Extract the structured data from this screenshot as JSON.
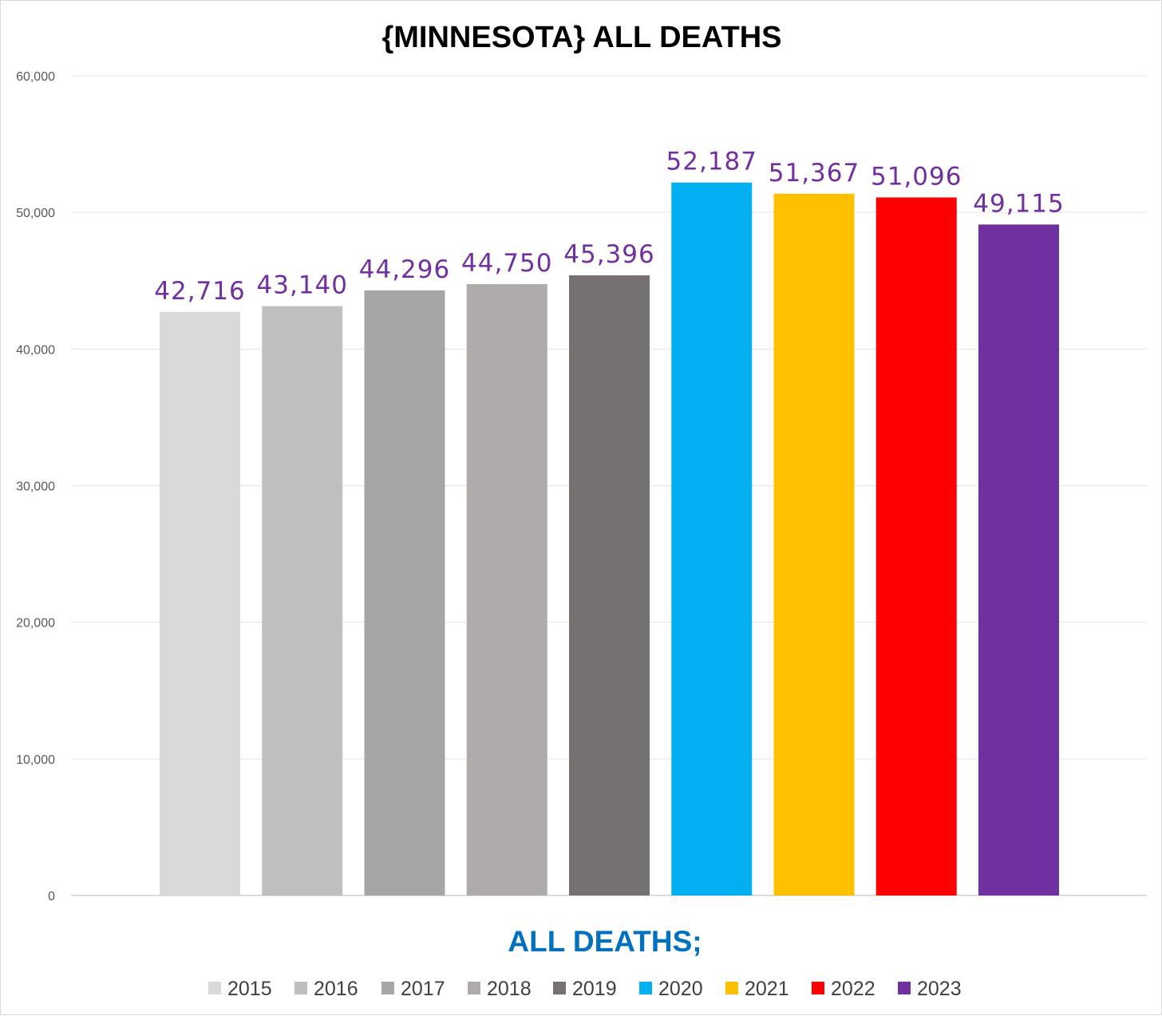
{
  "chart_data": {
    "type": "bar",
    "title": "{MINNESOTA}  ALL DEATHS",
    "xlabel": "ALL DEATHS;",
    "ylabel": "",
    "ylim": [
      0,
      60000
    ],
    "yticks": [
      0,
      10000,
      20000,
      30000,
      40000,
      50000,
      60000
    ],
    "ytick_labels": [
      "0",
      "10,000",
      "20,000",
      "30,000",
      "40,000",
      "50,000",
      "60,000"
    ],
    "grid": true,
    "legend_position": "bottom",
    "data_label_color": "#7030a0",
    "series": [
      {
        "name": "2015",
        "value": 42716,
        "label": "42,716",
        "color": "#d9d9d9"
      },
      {
        "name": "2016",
        "value": 43140,
        "label": "43,140",
        "color": "#bfbfbf"
      },
      {
        "name": "2017",
        "value": 44296,
        "label": "44,296",
        "color": "#a6a6a6"
      },
      {
        "name": "2018",
        "value": 44750,
        "label": "44,750",
        "color": "#afabab"
      },
      {
        "name": "2019",
        "value": 45396,
        "label": "45,396",
        "color": "#767171"
      },
      {
        "name": "2020",
        "value": 52187,
        "label": "52,187",
        "color": "#00b0f0"
      },
      {
        "name": "2021",
        "value": 51367,
        "label": "51,367",
        "color": "#ffc000"
      },
      {
        "name": "2022",
        "value": 51096,
        "label": "51,096",
        "color": "#ff0000"
      },
      {
        "name": "2023",
        "value": 49115,
        "label": "49,115",
        "color": "#7030a0"
      }
    ]
  }
}
